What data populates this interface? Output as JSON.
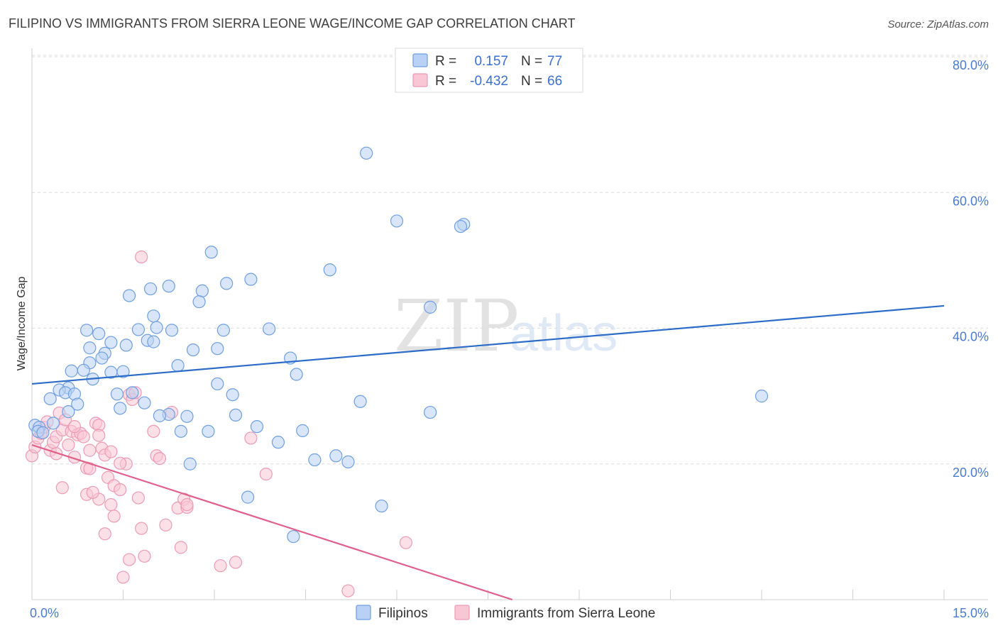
{
  "chart_data": {
    "type": "scatter",
    "title": "FILIPINO VS IMMIGRANTS FROM SIERRA LEONE WAGE/INCOME GAP CORRELATION CHART",
    "source": "Source: ZipAtlas.com",
    "ylabel": "Wage/Income Gap",
    "xlabel": "",
    "xlim": [
      0,
      15
    ],
    "ylim": [
      0,
      80
    ],
    "x_tick_labels": [
      {
        "value": 0,
        "label": "0.0%"
      },
      {
        "value": 15,
        "label": "15.0%"
      }
    ],
    "x_minor_ticks": [
      0,
      1.5,
      3,
      4.5,
      6,
      7.5,
      9,
      10.5,
      12,
      13.5,
      15
    ],
    "y_ticks": [
      {
        "value": 20,
        "label": "20.0%"
      },
      {
        "value": 40,
        "label": "40.0%"
      },
      {
        "value": 60,
        "label": "60.0%"
      },
      {
        "value": 80,
        "label": "80.0%"
      }
    ],
    "watermark": {
      "zip": "ZIP",
      "atlas": "atlas"
    },
    "legend": {
      "r_label": "R =",
      "n_label": "N =",
      "rows": [
        {
          "r": "0.157",
          "n": "77"
        },
        {
          "r": "-0.432",
          "n": "66"
        }
      ]
    },
    "series": [
      {
        "name": "Filipinos",
        "color": "#6f9fe0",
        "fill": "#b9d1f4",
        "line_color": "#2c6cc9",
        "trend": {
          "x0": 0,
          "y0": 31.8,
          "x1": 15,
          "y1": 43.3
        },
        "points": [
          [
            5.5,
            65.8
          ],
          [
            6.0,
            55.8
          ],
          [
            7.1,
            55.3
          ],
          [
            7.05,
            55.0
          ],
          [
            2.95,
            51.2
          ],
          [
            4.9,
            48.6
          ],
          [
            3.6,
            47.2
          ],
          [
            3.2,
            46.6
          ],
          [
            2.25,
            46.2
          ],
          [
            1.95,
            45.8
          ],
          [
            2.8,
            45.5
          ],
          [
            1.6,
            44.8
          ],
          [
            2.75,
            43.9
          ],
          [
            6.55,
            43.1
          ],
          [
            2.0,
            41.8
          ],
          [
            2.05,
            40.1
          ],
          [
            1.75,
            39.8
          ],
          [
            2.3,
            39.7
          ],
          [
            3.15,
            39.7
          ],
          [
            3.9,
            39.9
          ],
          [
            0.9,
            39.7
          ],
          [
            1.1,
            39.2
          ],
          [
            1.9,
            38.2
          ],
          [
            2.0,
            38.0
          ],
          [
            1.3,
            37.9
          ],
          [
            1.55,
            37.5
          ],
          [
            0.95,
            37.1
          ],
          [
            2.65,
            36.8
          ],
          [
            3.05,
            37.0
          ],
          [
            1.2,
            36.3
          ],
          [
            1.15,
            35.6
          ],
          [
            4.25,
            35.6
          ],
          [
            0.95,
            34.9
          ],
          [
            2.4,
            34.5
          ],
          [
            0.65,
            33.7
          ],
          [
            0.85,
            33.8
          ],
          [
            1.3,
            33.5
          ],
          [
            1.5,
            33.6
          ],
          [
            4.35,
            33.2
          ],
          [
            1.0,
            32.5
          ],
          [
            0.6,
            31.2
          ],
          [
            0.45,
            30.9
          ],
          [
            3.05,
            31.8
          ],
          [
            0.55,
            30.5
          ],
          [
            0.7,
            30.3
          ],
          [
            1.4,
            30.3
          ],
          [
            1.65,
            30.5
          ],
          [
            3.3,
            30.2
          ],
          [
            0.3,
            29.6
          ],
          [
            1.85,
            29.0
          ],
          [
            0.75,
            28.8
          ],
          [
            5.4,
            29.2
          ],
          [
            1.45,
            28.2
          ],
          [
            0.6,
            27.7
          ],
          [
            6.55,
            27.6
          ],
          [
            3.35,
            27.2
          ],
          [
            2.55,
            27.0
          ],
          [
            2.25,
            27.3
          ],
          [
            2.1,
            27.1
          ],
          [
            0.35,
            26.0
          ],
          [
            0.05,
            25.7
          ],
          [
            0.12,
            25.4
          ],
          [
            0.1,
            24.8
          ],
          [
            0.18,
            24.6
          ],
          [
            3.7,
            25.5
          ],
          [
            2.45,
            24.8
          ],
          [
            2.9,
            24.8
          ],
          [
            4.45,
            24.9
          ],
          [
            4.05,
            23.2
          ],
          [
            5.0,
            21.2
          ],
          [
            4.65,
            20.6
          ],
          [
            5.2,
            20.3
          ],
          [
            2.6,
            20.0
          ],
          [
            12.0,
            30.0
          ],
          [
            3.55,
            15.1
          ],
          [
            5.75,
            13.8
          ],
          [
            4.3,
            9.3
          ]
        ]
      },
      {
        "name": "Immigrants from Sierra Leone",
        "color": "#ec9bb5",
        "fill": "#f9c6d6",
        "line_color": "#e0608a",
        "trend": {
          "x0": 0,
          "y0": 22.8,
          "x1": 7.9,
          "y1": 0.0
        },
        "points": [
          [
            0.0,
            21.2
          ],
          [
            0.05,
            22.5
          ],
          [
            0.1,
            23.8
          ],
          [
            0.15,
            24.5
          ],
          [
            0.2,
            25.4
          ],
          [
            0.25,
            26.2
          ],
          [
            0.3,
            22.0
          ],
          [
            0.35,
            23.2
          ],
          [
            0.4,
            24.0
          ],
          [
            0.45,
            27.5
          ],
          [
            0.5,
            25.0
          ],
          [
            0.55,
            26.5
          ],
          [
            0.6,
            22.8
          ],
          [
            0.65,
            24.8
          ],
          [
            0.7,
            21.0
          ],
          [
            0.75,
            24.3
          ],
          [
            0.8,
            24.5
          ],
          [
            0.85,
            24.0
          ],
          [
            0.9,
            19.4
          ],
          [
            0.95,
            22.0
          ],
          [
            1.05,
            26.0
          ],
          [
            1.1,
            25.7
          ],
          [
            1.15,
            22.3
          ],
          [
            1.2,
            21.3
          ],
          [
            1.25,
            18.0
          ],
          [
            1.3,
            21.8
          ],
          [
            1.35,
            16.8
          ],
          [
            1.45,
            16.2
          ],
          [
            1.55,
            20.0
          ],
          [
            1.6,
            30.2
          ],
          [
            1.65,
            29.5
          ],
          [
            1.7,
            30.5
          ],
          [
            1.3,
            14.0
          ],
          [
            1.35,
            12.3
          ],
          [
            1.75,
            15.0
          ],
          [
            1.8,
            10.5
          ],
          [
            1.85,
            6.4
          ],
          [
            1.6,
            5.9
          ],
          [
            1.5,
            3.3
          ],
          [
            2.0,
            24.8
          ],
          [
            2.05,
            21.2
          ],
          [
            2.1,
            20.8
          ],
          [
            2.2,
            11.0
          ],
          [
            2.3,
            27.6
          ],
          [
            2.4,
            13.5
          ],
          [
            2.5,
            14.8
          ],
          [
            2.55,
            13.6
          ],
          [
            2.45,
            7.7
          ],
          [
            3.1,
            5.0
          ],
          [
            3.35,
            5.5
          ],
          [
            3.6,
            23.8
          ],
          [
            3.85,
            18.5
          ],
          [
            5.2,
            1.3
          ],
          [
            6.15,
            8.4
          ],
          [
            1.8,
            50.5
          ],
          [
            0.5,
            16.5
          ],
          [
            0.9,
            15.5
          ],
          [
            1.1,
            14.8
          ],
          [
            0.95,
            19.3
          ],
          [
            1.0,
            15.8
          ],
          [
            1.2,
            9.7
          ],
          [
            0.4,
            21.5
          ],
          [
            0.7,
            25.5
          ],
          [
            1.45,
            20.1
          ],
          [
            2.55,
            14.0
          ],
          [
            1.1,
            24.2
          ]
        ]
      }
    ]
  },
  "legend_bottom": [
    "Filipinos",
    "Immigrants from Sierra Leone"
  ]
}
